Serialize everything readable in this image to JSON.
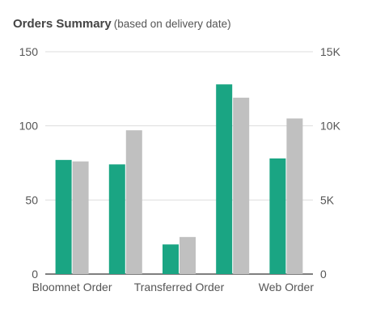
{
  "header": {
    "title": "Orders Summary",
    "subtitle": "(based on delivery date)"
  },
  "chart_data": {
    "type": "bar",
    "title": "Orders Summary",
    "subtitle": "(based on delivery date)",
    "categories": [
      "Bloomnet Order",
      "",
      "Transferred Order",
      "",
      "Web Order"
    ],
    "series": [
      {
        "values": [
          77,
          74,
          20,
          128,
          78
        ],
        "color": "#1aa583",
        "axis": "left"
      },
      {
        "values": [
          7600,
          9700,
          2500,
          11900,
          10500
        ],
        "color": "#c0c0c0",
        "axis": "right"
      }
    ],
    "y_left": {
      "ylim": [
        0,
        150
      ],
      "ticks": [
        "0",
        "50",
        "100",
        "150"
      ]
    },
    "y_right": {
      "ylim": [
        0,
        15000
      ],
      "ticks": [
        "0",
        "5K",
        "10K",
        "15K"
      ]
    },
    "grid": true,
    "legend": "none"
  }
}
